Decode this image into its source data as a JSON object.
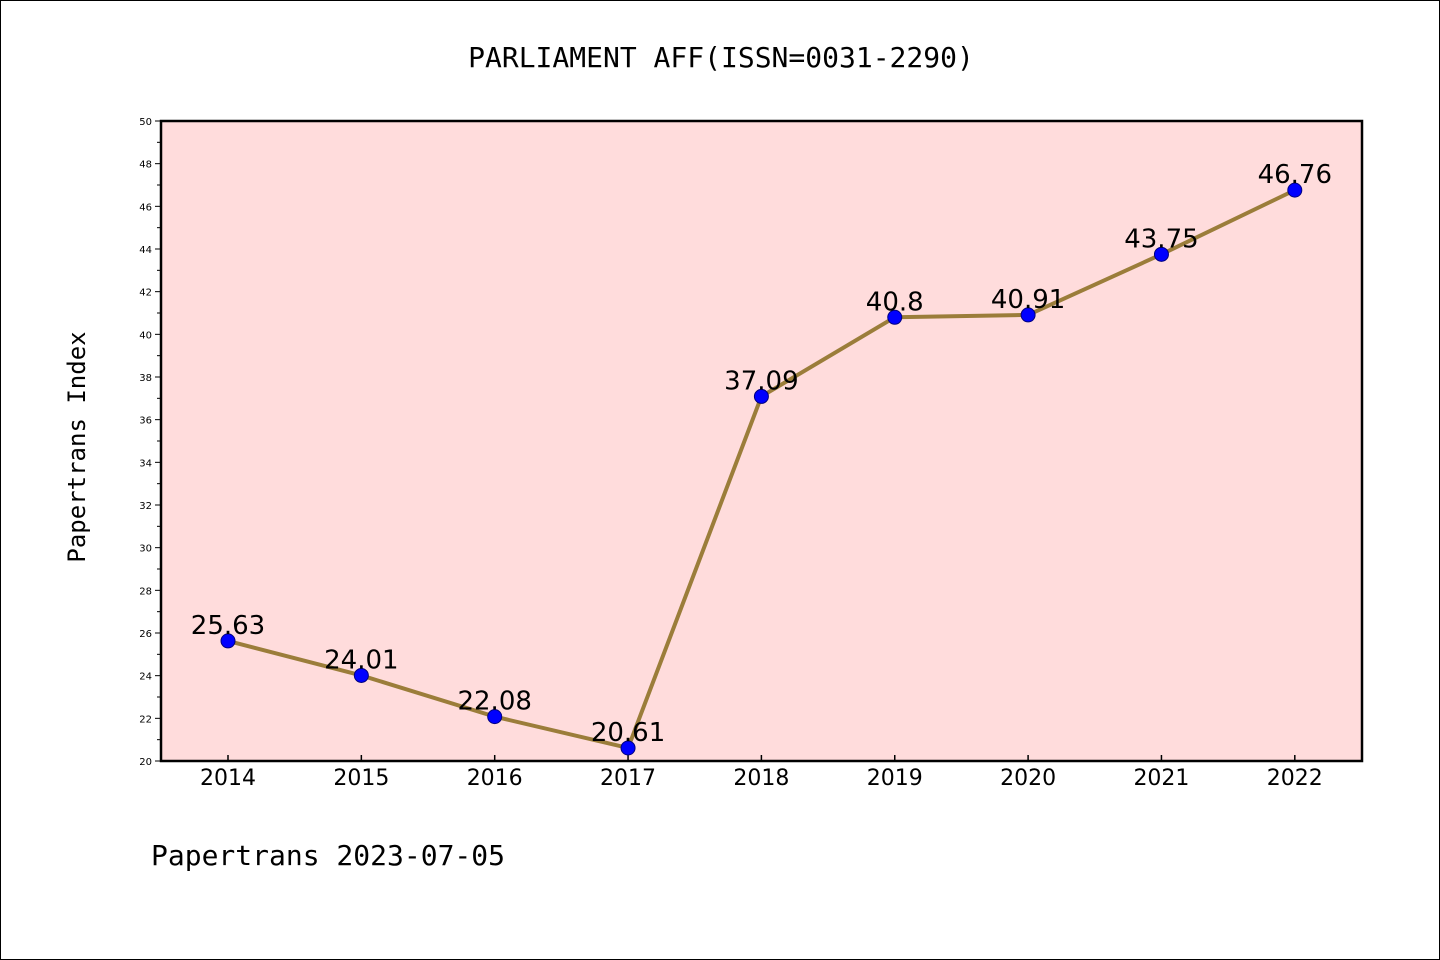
{
  "chart_data": {
    "type": "line",
    "title": "PARLIAMENT AFF(ISSN=0031-2290)",
    "ylabel": "Papertrans Index",
    "xlabel": "",
    "footer": "Papertrans 2023-07-05",
    "categories": [
      "2014",
      "2015",
      "2016",
      "2017",
      "2018",
      "2019",
      "2020",
      "2021",
      "2022"
    ],
    "series": [
      {
        "values": [
          25.63,
          24.01,
          22.08,
          20.61,
          37.09,
          40.8,
          40.91,
          43.75,
          46.76
        ],
        "labels": [
          "25.63",
          "24.01",
          "22.08",
          "20.61",
          "37.09",
          "40.8",
          "40.91",
          "43.75",
          "46.76"
        ]
      }
    ],
    "ylim": [
      20,
      50
    ],
    "yticks": [
      "20",
      "22",
      "24",
      "26",
      "28",
      "30",
      "32",
      "34",
      "36",
      "38",
      "40",
      "42",
      "44",
      "46",
      "48",
      "50"
    ],
    "grid": false,
    "legend": "none",
    "colors": {
      "plot_background": "#ffdcdc",
      "line": "#9b7d3a",
      "marker_fill": "#0000ff",
      "marker_edge": "#000080",
      "text": "#000000",
      "axis": "#000000"
    }
  }
}
